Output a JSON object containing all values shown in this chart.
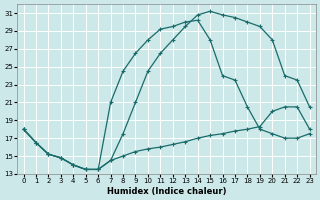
{
  "xlabel": "Humidex (Indice chaleur)",
  "bg_color": "#cce8e8",
  "line_color": "#1a6b6b",
  "grid_color": "#ffffff",
  "xlim": [
    -0.5,
    23.5
  ],
  "ylim": [
    13,
    32
  ],
  "yticks": [
    13,
    15,
    17,
    19,
    21,
    23,
    25,
    27,
    29,
    31
  ],
  "xticks": [
    0,
    1,
    2,
    3,
    4,
    5,
    6,
    7,
    8,
    9,
    10,
    11,
    12,
    13,
    14,
    15,
    16,
    17,
    18,
    19,
    20,
    21,
    22,
    23
  ],
  "line1_x": [
    0,
    1,
    2,
    3,
    4,
    5,
    6,
    7,
    8,
    9,
    10,
    11,
    12,
    13,
    14,
    15,
    16,
    17,
    18,
    19,
    20,
    21,
    22,
    23
  ],
  "line1_y": [
    18,
    16.5,
    15.2,
    14.8,
    14.0,
    13.5,
    13.5,
    14.5,
    17.5,
    21.0,
    24.5,
    26.5,
    28.0,
    29.5,
    30.8,
    31.2,
    30.8,
    30.5,
    30.0,
    29.5,
    28.0,
    24.0,
    23.5,
    20.5
  ],
  "line2_x": [
    0,
    1,
    2,
    3,
    4,
    5,
    6,
    7,
    8,
    9,
    10,
    11,
    12,
    13,
    14,
    15,
    16,
    17,
    18,
    19,
    20,
    21,
    22,
    23
  ],
  "line2_y": [
    18,
    16.5,
    15.2,
    14.8,
    14.0,
    13.5,
    13.5,
    21.0,
    24.5,
    26.5,
    28.0,
    29.2,
    29.5,
    30.0,
    30.2,
    28.0,
    24.0,
    23.5,
    20.5,
    18.0,
    17.5,
    17.0,
    17.0,
    17.5
  ],
  "line3_x": [
    0,
    1,
    2,
    3,
    4,
    5,
    6,
    7,
    8,
    9,
    10,
    11,
    12,
    13,
    14,
    15,
    16,
    17,
    18,
    19,
    20,
    21,
    22,
    23
  ],
  "line3_y": [
    18,
    16.5,
    15.2,
    14.8,
    14.0,
    13.5,
    13.5,
    14.5,
    15.0,
    15.5,
    15.8,
    16.0,
    16.3,
    16.6,
    17.0,
    17.3,
    17.5,
    17.8,
    18.0,
    18.3,
    20.0,
    20.5,
    20.5,
    18.0
  ]
}
